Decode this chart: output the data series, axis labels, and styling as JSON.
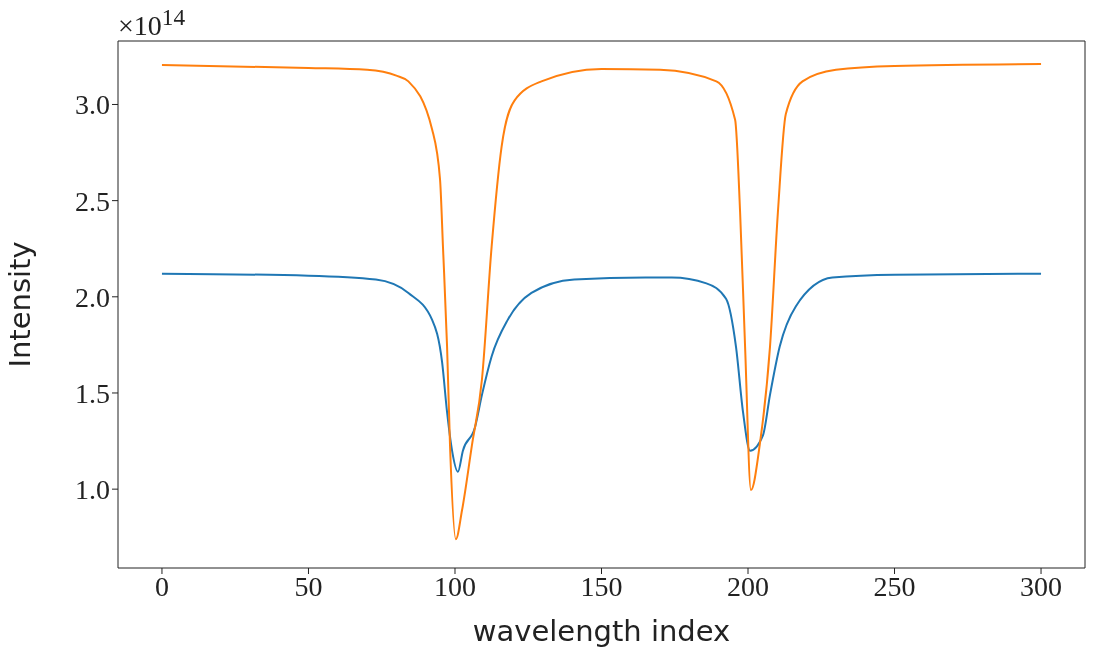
{
  "chart_data": {
    "type": "line",
    "xlabel": "wavelength index",
    "ylabel": "Intensity",
    "annotations": [
      "×10$^{14}$"
    ],
    "xlim": [
      -15,
      315
    ],
    "xticks": [
      0,
      50,
      100,
      150,
      200,
      250,
      300
    ],
    "ylim": [
      0.59,
      3.33
    ],
    "yticks": [
      {
        "value": 1.0,
        "label": "1.0"
      },
      1.5,
      {
        "value": 2.0,
        "label": "2.0"
      },
      2.5,
      {
        "value": 3.0,
        "label": "3.0"
      }
    ],
    "grid": false,
    "legend": false,
    "marker": "none",
    "line_style": "solid",
    "series": [
      {
        "color": "#1f77b4",
        "x": [
          0,
          50,
          73,
          84.1,
          92.2,
          95.6,
          97.3,
          99,
          101,
          102.7,
          106.8,
          109.2,
          112.5,
          118,
          126.1,
          140.7,
          165,
          174,
          185.8,
          192.5,
          195.9,
          198.3,
          200.7,
          205.1,
          207.5,
          210.8,
          216.3,
          228.8,
          250,
          300
        ],
        "values": [
          2.12,
          2.11,
          2.09,
          2.02,
          1.88,
          1.66,
          1.4,
          1.2,
          1.09,
          1.2,
          1.32,
          1.49,
          1.69,
          1.88,
          2.02,
          2.09,
          2.1,
          2.1,
          2.07,
          1.99,
          1.74,
          1.4,
          1.2,
          1.28,
          1.49,
          1.74,
          1.95,
          2.1,
          2.115,
          2.12
        ]
      },
      {
        "color": "#ff7f0e",
        "x": [
          0,
          50,
          70,
          80,
          84.1,
          92.2,
          94.9,
          95.9,
          97.3,
          98.3,
          100.3,
          102.4,
          105.8,
          109.2,
          112.5,
          115.9,
          120.3,
          129.5,
          150,
          170,
          189.2,
          195.6,
          197.3,
          199,
          201,
          204,
          207.5,
          210.2,
          212.9,
          218.6,
          230,
          250,
          300
        ],
        "values": [
          3.205,
          3.19,
          3.18,
          3.15,
          3.12,
          2.87,
          2.61,
          2.26,
          1.74,
          1.23,
          0.74,
          0.89,
          1.23,
          1.57,
          2.26,
          2.78,
          3.02,
          3.12,
          3.185,
          3.18,
          3.12,
          2.92,
          2.44,
          1.74,
          0.995,
          1.23,
          1.74,
          2.44,
          2.95,
          3.12,
          3.18,
          3.2,
          3.21
        ]
      }
    ]
  }
}
